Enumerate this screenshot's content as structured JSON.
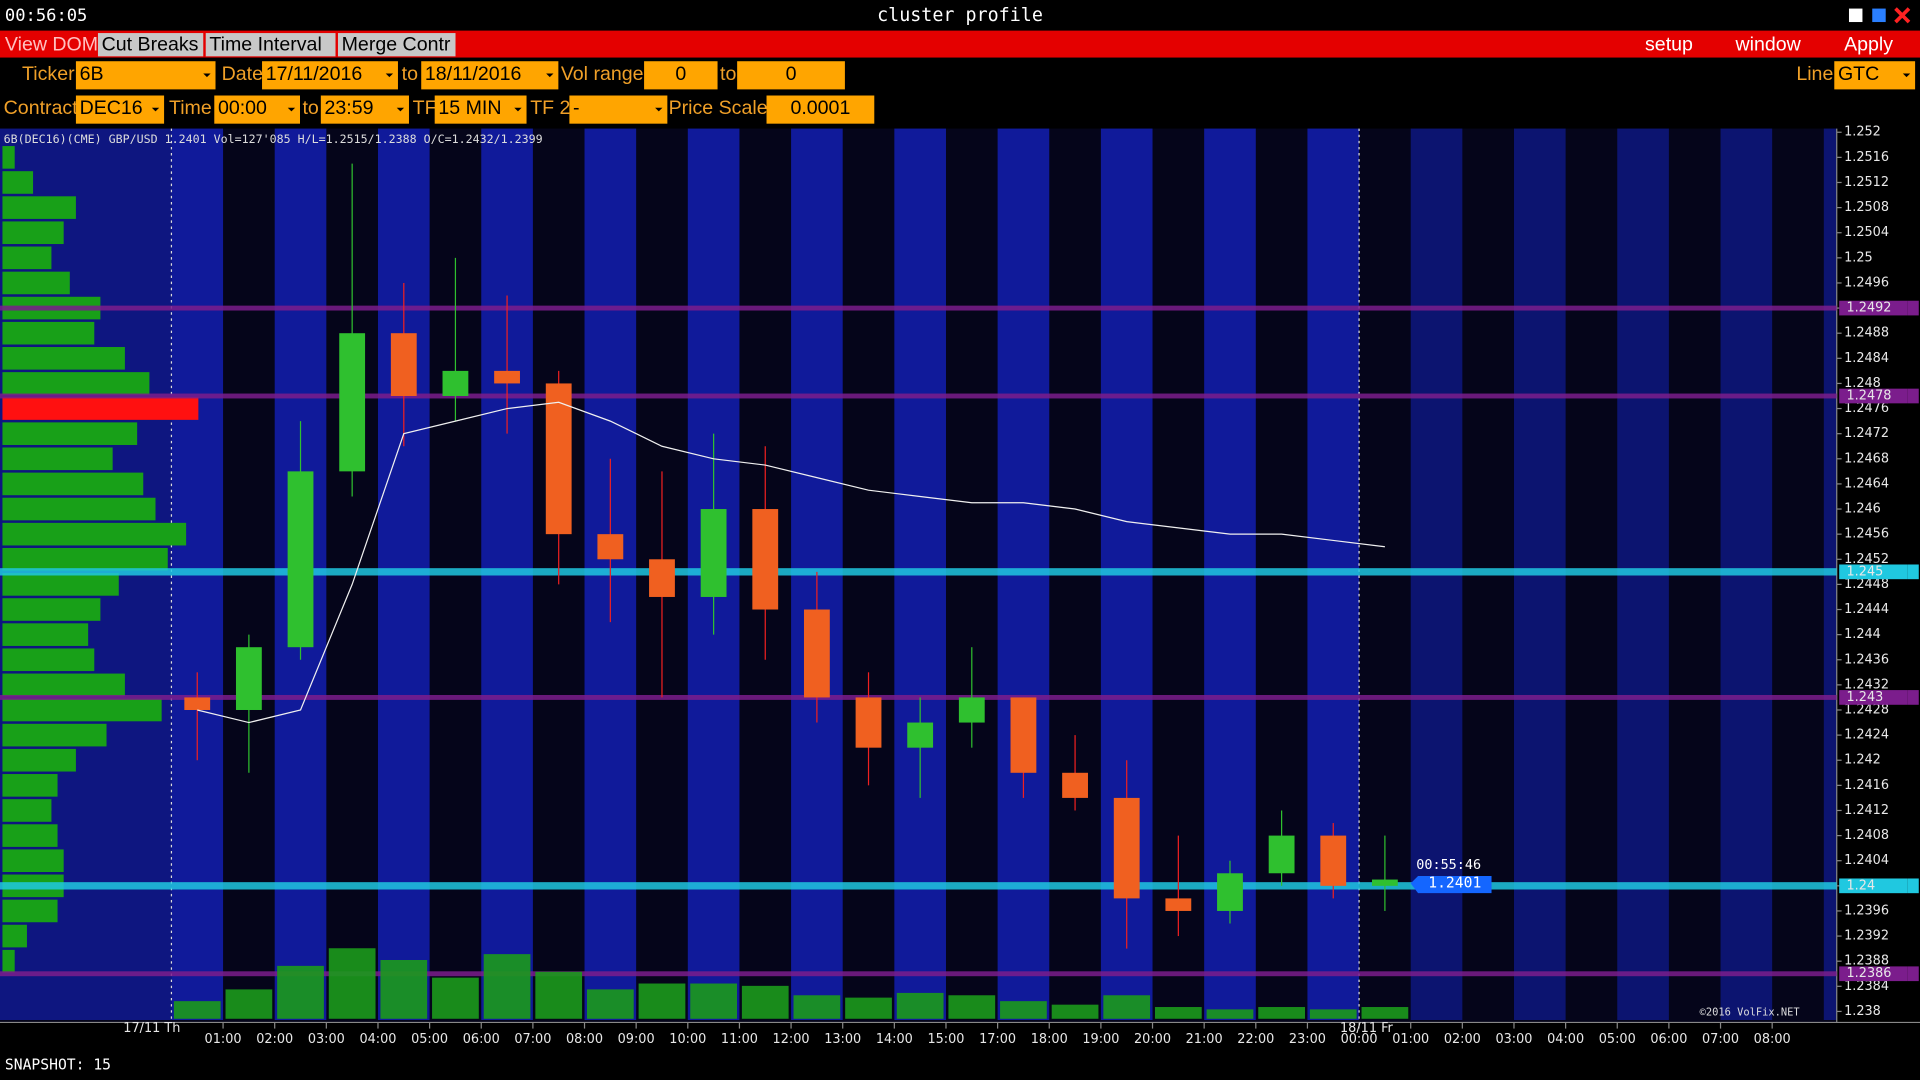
{
  "window": {
    "clock": "00:56:05",
    "title": "cluster profile"
  },
  "tabs": [
    "View DOM",
    "Cut Breaks",
    "Time Interval",
    "Merge Contr"
  ],
  "menu": [
    "setup",
    "window",
    "Apply"
  ],
  "toolbar": {
    "ticker_label": "Ticker",
    "ticker": "6B",
    "date_label": "Date",
    "date_from": "17/11/2016",
    "to1": "to",
    "date_to": "18/11/2016",
    "vol_label": "Vol range",
    "vol_from": "0",
    "to2": "to",
    "vol_to": "0",
    "line_label": "Line",
    "line": "GTC",
    "contract_label": "Contract",
    "contract": "DEC16",
    "time_label": "Time",
    "time_from": "00:00",
    "to3": "to",
    "time_to": "23:59",
    "tf_label": "TF",
    "tf": "15 MIN",
    "tf2_label": "TF 2",
    "tf2": "-",
    "scale_label": "Price Scale",
    "scale": "0.0001"
  },
  "chart_data": {
    "type": "candlestick",
    "info": "6B(DEC16)(CME) GBP/USD 1.2401 Vol=127'085 H/L=1.2515/1.2388 O/C=1.2432/1.2399",
    "ylim": [
      1.238,
      1.252
    ],
    "yticks": [
      1.252,
      1.2516,
      1.2512,
      1.2508,
      1.2504,
      1.25,
      1.2496,
      1.2492,
      1.2488,
      1.2484,
      1.248,
      1.2476,
      1.2472,
      1.2468,
      1.2464,
      1.246,
      1.2456,
      1.2452,
      1.2448,
      1.2444,
      1.244,
      1.2436,
      1.2432,
      1.2428,
      1.2424,
      1.242,
      1.2416,
      1.2412,
      1.2408,
      1.2404,
      1.24,
      1.2396,
      1.2392,
      1.2388,
      1.2384,
      1.238
    ],
    "xlabels": [
      "01:00",
      "02:00",
      "03:00",
      "04:00",
      "05:00",
      "06:00",
      "07:00",
      "08:00",
      "09:00",
      "10:00",
      "11:00",
      "12:00",
      "13:00",
      "14:00",
      "15:00",
      "17:00",
      "18:00",
      "19:00",
      "20:00",
      "21:00",
      "22:00",
      "23:00",
      "00:00",
      "01:00",
      "02:00",
      "03:00",
      "04:00",
      "05:00",
      "06:00",
      "07:00",
      "08:00"
    ],
    "day_labels": [
      "17/11 Th",
      "18/11 Fr"
    ],
    "candles": [
      {
        "open": 1.243,
        "high": 1.2434,
        "low": 1.242,
        "close": 1.2428
      },
      {
        "open": 1.2428,
        "high": 1.244,
        "low": 1.2418,
        "close": 1.2438
      },
      {
        "open": 1.2438,
        "high": 1.2474,
        "low": 1.2436,
        "close": 1.2466
      },
      {
        "open": 1.2466,
        "high": 1.2515,
        "low": 1.2462,
        "close": 1.2488
      },
      {
        "open": 1.2488,
        "high": 1.2496,
        "low": 1.247,
        "close": 1.2478
      },
      {
        "open": 1.2478,
        "high": 1.25,
        "low": 1.2474,
        "close": 1.2482
      },
      {
        "open": 1.2482,
        "high": 1.2494,
        "low": 1.2472,
        "close": 1.248
      },
      {
        "open": 1.248,
        "high": 1.2482,
        "low": 1.2448,
        "close": 1.2456
      },
      {
        "open": 1.2456,
        "high": 1.2468,
        "low": 1.2442,
        "close": 1.2452
      },
      {
        "open": 1.2452,
        "high": 1.2466,
        "low": 1.243,
        "close": 1.2446
      },
      {
        "open": 1.2446,
        "high": 1.2472,
        "low": 1.244,
        "close": 1.246
      },
      {
        "open": 1.246,
        "high": 1.247,
        "low": 1.2436,
        "close": 1.2444
      },
      {
        "open": 1.2444,
        "high": 1.245,
        "low": 1.2426,
        "close": 1.243
      },
      {
        "open": 1.243,
        "high": 1.2434,
        "low": 1.2416,
        "close": 1.2422
      },
      {
        "open": 1.2422,
        "high": 1.243,
        "low": 1.2414,
        "close": 1.2426
      },
      {
        "open": 1.2426,
        "high": 1.2438,
        "low": 1.2422,
        "close": 1.243
      },
      {
        "open": 1.243,
        "high": 1.243,
        "low": 1.2414,
        "close": 1.2418
      },
      {
        "open": 1.2418,
        "high": 1.2424,
        "low": 1.2412,
        "close": 1.2414
      },
      {
        "open": 1.2414,
        "high": 1.242,
        "low": 1.239,
        "close": 1.2398
      },
      {
        "open": 1.2398,
        "high": 1.2408,
        "low": 1.2392,
        "close": 1.2396
      },
      {
        "open": 1.2396,
        "high": 1.2404,
        "low": 1.2394,
        "close": 1.2402
      },
      {
        "open": 1.2402,
        "high": 1.2412,
        "low": 1.24,
        "close": 1.2408
      },
      {
        "open": 1.2408,
        "high": 1.241,
        "low": 1.2398,
        "close": 1.24
      },
      {
        "open": 1.24,
        "high": 1.2408,
        "low": 1.2396,
        "close": 1.2401
      }
    ],
    "vwap": [
      1.2428,
      1.2426,
      1.2428,
      1.2448,
      1.2472,
      1.2474,
      1.2476,
      1.2477,
      1.2474,
      1.247,
      1.2468,
      1.2467,
      1.2465,
      1.2463,
      1.2462,
      1.2461,
      1.2461,
      1.246,
      1.2458,
      1.2457,
      1.2456,
      1.2456,
      1.2455,
      1.2454
    ],
    "volume": [
      15,
      25,
      45,
      60,
      50,
      35,
      55,
      40,
      25,
      30,
      30,
      28,
      20,
      18,
      22,
      20,
      15,
      12,
      20,
      10,
      8,
      10,
      8,
      10
    ],
    "volume_max": 125,
    "profile": [
      0,
      10,
      25,
      60,
      50,
      40,
      55,
      80,
      75,
      100,
      120,
      160,
      110,
      90,
      115,
      125,
      150,
      135,
      95,
      80,
      70,
      75,
      100,
      130,
      85,
      60,
      45,
      40,
      45,
      50,
      50,
      45,
      20,
      10,
      0,
      0
    ],
    "levels": [
      {
        "value": 1.2492,
        "color": "#7b1d8c"
      },
      {
        "value": 1.2478,
        "color": "#7b1d8c"
      },
      {
        "value": 1.245,
        "color": "#20c8e0"
      },
      {
        "value": 1.243,
        "color": "#7b1d8c"
      },
      {
        "value": 1.24,
        "color": "#20c8e0"
      },
      {
        "value": 1.2386,
        "color": "#7b1d8c"
      }
    ],
    "timer": "00:55:46",
    "last": "1.2401",
    "copyright": "©2016 VolFix.NET"
  },
  "status": "SNAPSHOT: 15"
}
